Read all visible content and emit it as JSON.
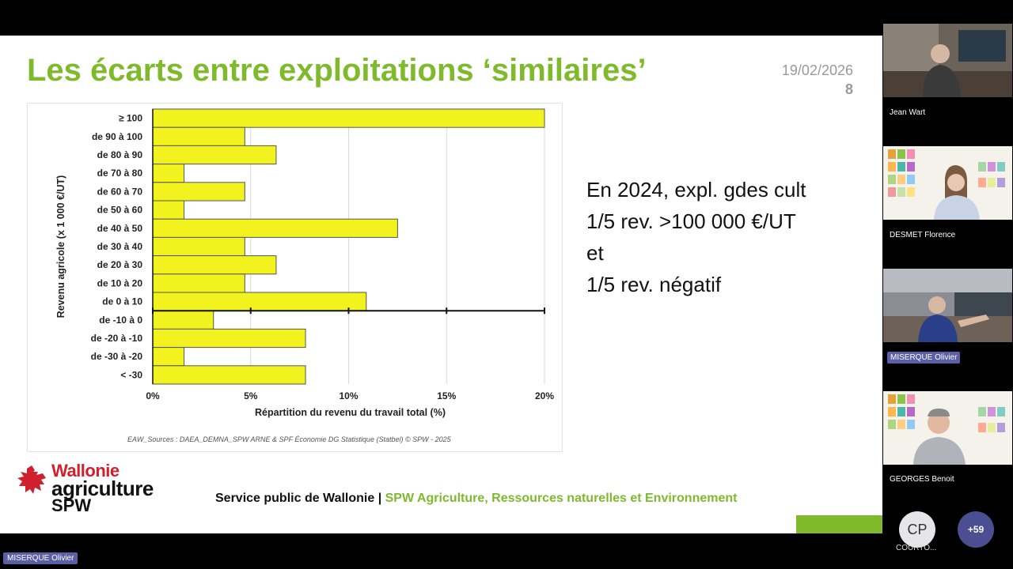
{
  "slide": {
    "title": "Les écarts entre exploitations ‘similaires’",
    "date": "19/02/2026",
    "page_number": "8",
    "side_text": [
      "En 2024, expl. gdes cult",
      "1/5 rev. >100 000 €/UT",
      "et",
      "1/5 rev. négatif"
    ],
    "footer_left": "Service public de Wallonie | ",
    "footer_right": "SPW Agriculture, Ressources naturelles et Environnement",
    "logo": {
      "line1": "Wallonie",
      "line2": "agriculture",
      "line3": "SPW"
    },
    "colors": {
      "accent_green": "#7fba2c",
      "logo_red": "#d0202e",
      "bar_fill": "#f2f21f"
    }
  },
  "chart_data": {
    "type": "bar",
    "orientation": "horizontal",
    "categories": [
      "≥ 100",
      "de 90 à 100",
      "de 80 à 90",
      "de 70 à 80",
      "de 60 à 70",
      "de 50 à 60",
      "de 40 à 50",
      "de 30 à 40",
      "de 20 à 30",
      "de 10 à 20",
      "de 0 à 10",
      "de -10 à 0",
      "de -20 à -10",
      "de -30 à -20",
      "< -30"
    ],
    "values": [
      20,
      4.7,
      6.3,
      1.6,
      4.7,
      1.6,
      12.5,
      4.7,
      6.3,
      4.7,
      10.9,
      3.1,
      7.8,
      1.6,
      7.8
    ],
    "xlabel": "Répartition du revenu du travail total (%)",
    "ylabel": "Revenu agricole (x 1 000 €/UT)",
    "xlim": [
      0,
      20
    ],
    "xticks": [
      "0%",
      "5%",
      "10%",
      "15%",
      "20%"
    ],
    "xtick_values": [
      0,
      5,
      10,
      15,
      20
    ],
    "grid": "vertical",
    "source": "EAW_Sources : DAEA_DEMNA_SPW ARNE & SPF Économie DG Statistique (Statbel)          © SPW - 2025"
  },
  "participants": [
    {
      "name": "Jean Wart"
    },
    {
      "name": "DESMET Florence"
    },
    {
      "name": "MISERQUE Olivier"
    },
    {
      "name": "GEORGES Benoit"
    }
  ],
  "overflow": {
    "avatar_initials": "CP",
    "avatar_label": "COURTO...",
    "more_count": "+59"
  },
  "active_speaker": "MISERQUE Olivier"
}
